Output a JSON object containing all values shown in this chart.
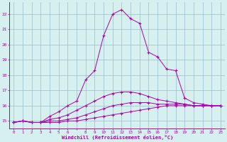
{
  "xlabel": "Windchill (Refroidissement éolien,°C)",
  "xlim": [
    -0.5,
    23.5
  ],
  "ylim": [
    14.5,
    22.8
  ],
  "yticks": [
    15,
    16,
    17,
    18,
    19,
    20,
    21,
    22
  ],
  "background_color": "#d6f0f0",
  "line_color": "#aa00aa",
  "grid_color": "#99bbcc",
  "series": [
    [
      14.9,
      15.0,
      14.9,
      14.9,
      14.9,
      14.9,
      15.0,
      15.0,
      15.1,
      15.2,
      15.3,
      15.4,
      15.5,
      15.6,
      15.7,
      15.8,
      15.9,
      16.0,
      16.0,
      16.0,
      16.0,
      16.0,
      16.0,
      16.0
    ],
    [
      14.9,
      15.0,
      14.9,
      14.9,
      15.0,
      15.0,
      15.1,
      15.2,
      15.4,
      15.6,
      15.8,
      16.0,
      16.1,
      16.2,
      16.2,
      16.2,
      16.1,
      16.1,
      16.1,
      16.1,
      16.0,
      16.0,
      16.0,
      16.0
    ],
    [
      14.9,
      15.0,
      14.9,
      14.9,
      15.1,
      15.2,
      15.4,
      15.7,
      16.0,
      16.3,
      16.6,
      16.8,
      16.9,
      16.9,
      16.8,
      16.6,
      16.4,
      16.3,
      16.2,
      16.1,
      16.0,
      16.0,
      16.0,
      16.0
    ],
    [
      14.9,
      15.0,
      14.9,
      14.9,
      15.3,
      15.6,
      16.0,
      16.3,
      17.7,
      18.3,
      20.6,
      22.0,
      22.3,
      21.7,
      21.4,
      19.5,
      19.2,
      18.4,
      18.3,
      16.5,
      16.2,
      16.1,
      16.0,
      16.0
    ]
  ]
}
